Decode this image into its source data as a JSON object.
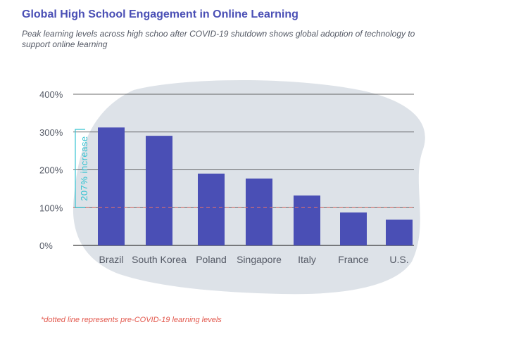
{
  "title": "Global High School Engagement in Online Learning",
  "subtitle": "Peak learning levels across high schoo after COVID-19  shutdown shows global adoption of technology to support online learning",
  "footnote": "*dotted line represents pre-COVID-19 learning levels",
  "colors": {
    "title": "#4a4fb5",
    "bar": "#4a4fb5",
    "blob": "#dde2e8",
    "baseline_dashed": "#e8726a",
    "annotation": "#34c3d1",
    "gridline": "#3a3a3a"
  },
  "chart_data": {
    "type": "bar",
    "title": "Global High School Engagement in Online Learning",
    "xlabel": "",
    "ylabel": "",
    "categories": [
      "Brazil",
      "South Korea",
      "Poland",
      "Singapore",
      "Italy",
      "France",
      "U.S."
    ],
    "values": [
      312,
      290,
      190,
      177,
      132,
      87,
      68
    ],
    "ylim": [
      0,
      400
    ],
    "yticks": [
      0,
      100,
      200,
      300,
      400
    ],
    "ytick_labels": [
      "0%",
      "100%",
      "200%",
      "300%",
      "400%"
    ],
    "grid": true,
    "reference_line": {
      "value": 100,
      "style": "dotted"
    },
    "annotation": {
      "text": "207% increase",
      "from": 100,
      "to": 307
    }
  }
}
